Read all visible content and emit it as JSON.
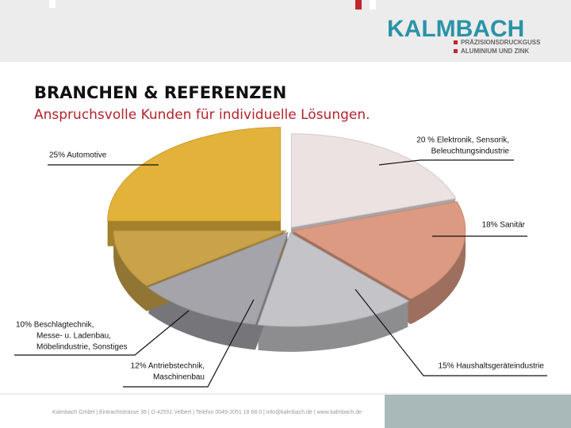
{
  "header": {
    "logo": "KALMBACH",
    "logo_line1": "PRÄZISIONSDRUCKGUSS",
    "logo_line2": "ALUMINIUM UND ZINK"
  },
  "title": "BRANCHEN & REFERENZEN",
  "subtitle": "Anspruchsvolle Kunden für individuelle Lösungen.",
  "chart_data": {
    "type": "pie",
    "categories": [
      [
        "20 % Elektronik, Sensorik,",
        "Beleuchtungsindustrie"
      ],
      [
        "18% Sanitär"
      ],
      [
        "15% Haushaltsgeräteindustrie"
      ],
      [
        "12% Antriebstechnik,",
        "Maschinenbau"
      ],
      [
        "10%  Beschlagtechnik,",
        "Messe- u. Ladenbau,",
        "Möbelindustrie, Sonstiges"
      ],
      [
        "25% Automotive"
      ]
    ],
    "values": [
      20,
      18,
      15,
      12,
      10,
      25
    ],
    "colors": [
      "#ece2e2",
      "#dc9a82",
      "#c4c4c8",
      "#a4a4aa",
      "#c9a24a",
      "#e2b23a"
    ]
  },
  "footer": "Kalmbach GmbH | Eintrachtstrasse 36 | D-42551 Velbert | Telefon 0049-2051 18 68 0 | info@kalmbach.de | www.kalmbach.de"
}
